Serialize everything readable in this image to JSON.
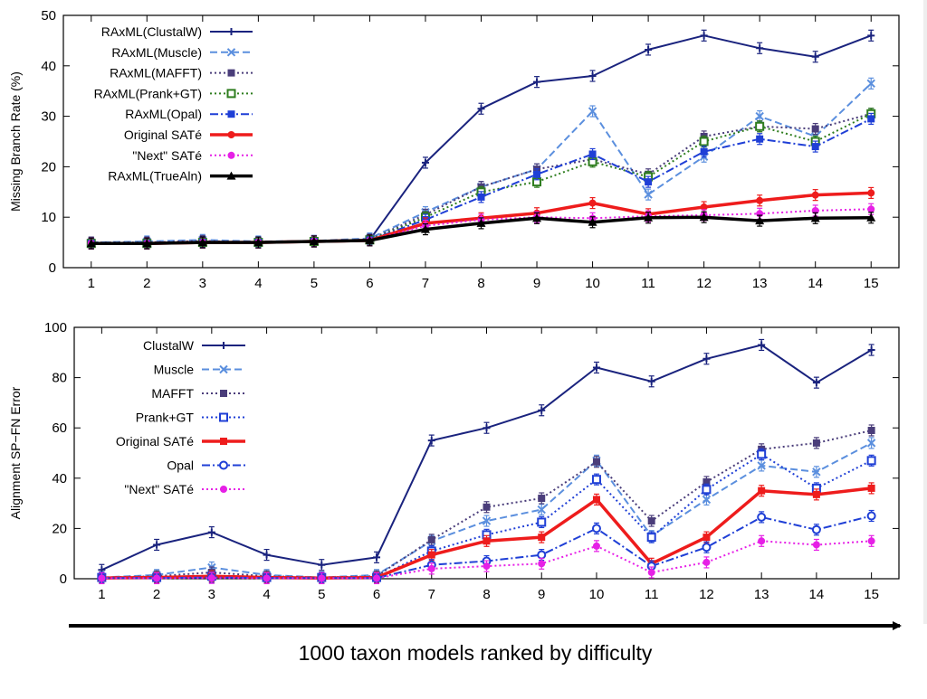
{
  "footer": {
    "caption": "1000 taxon models ranked by difficulty"
  },
  "chart_data": [
    {
      "type": "line",
      "ylabel": "Missing Branch Rate (%)",
      "xlabel": "",
      "ylim": [
        0,
        50
      ],
      "yticks": [
        0,
        10,
        20,
        30,
        40,
        50
      ],
      "x": [
        1,
        2,
        3,
        4,
        5,
        6,
        7,
        8,
        9,
        10,
        11,
        12,
        13,
        14,
        15
      ],
      "legend_position": "top-left",
      "grid": false,
      "series": [
        {
          "name": "RAxML(ClustalW)",
          "color": "#1a237e",
          "marker": "plus",
          "dash": "solid",
          "width": 2,
          "values": [
            4.8,
            4.8,
            5.2,
            5.0,
            5.3,
            5.5,
            20.8,
            31.5,
            36.8,
            38.0,
            43.2,
            46.0,
            43.5,
            41.8,
            46.0
          ]
        },
        {
          "name": "RAxML(Muscle)",
          "color": "#5b8fde",
          "marker": "x",
          "dash": "dashed",
          "width": 2,
          "values": [
            5.0,
            5.2,
            5.5,
            5.2,
            5.3,
            5.8,
            11.0,
            16.0,
            19.5,
            31.0,
            14.5,
            22.0,
            30.0,
            26.0,
            36.5
          ]
        },
        {
          "name": "RAxML(MAFFT)",
          "color": "#4a3d7a",
          "marker": "square-filled",
          "dash": "dotted",
          "width": 2,
          "values": [
            5.0,
            5.0,
            5.3,
            5.0,
            5.2,
            5.6,
            10.5,
            16.0,
            19.5,
            21.5,
            18.5,
            26.0,
            28.0,
            27.5,
            30.5
          ]
        },
        {
          "name": "RAxML(Prank+GT)",
          "color": "#2e7d1e",
          "marker": "square-open",
          "dash": "dotted",
          "width": 2,
          "values": [
            4.8,
            4.8,
            5.0,
            5.0,
            5.2,
            5.5,
            10.0,
            15.0,
            17.0,
            21.0,
            18.0,
            25.0,
            28.0,
            25.0,
            30.5
          ]
        },
        {
          "name": "RAxML(Opal)",
          "color": "#1f3fd6",
          "marker": "square-filled",
          "dash": "dashdot",
          "width": 2,
          "values": [
            4.8,
            4.8,
            5.0,
            5.0,
            5.2,
            5.5,
            9.5,
            14.0,
            18.5,
            22.5,
            17.0,
            23.0,
            25.5,
            24.0,
            29.5
          ]
        },
        {
          "name": "Original SATé",
          "color": "#ee1c1c",
          "marker": "circle-filled",
          "dash": "solid",
          "width": 3.5,
          "values": [
            4.8,
            4.8,
            5.0,
            5.0,
            5.2,
            5.4,
            8.8,
            9.8,
            10.8,
            12.8,
            10.6,
            12.0,
            13.3,
            14.4,
            14.8
          ]
        },
        {
          "name": "\"Next\" SATé",
          "color": "#e620e6",
          "marker": "circle-filled",
          "dash": "dotted",
          "width": 2,
          "values": [
            4.8,
            4.8,
            5.0,
            5.0,
            5.2,
            5.4,
            8.3,
            9.5,
            10.0,
            9.8,
            10.2,
            10.4,
            10.7,
            11.3,
            11.6
          ]
        },
        {
          "name": "RAxML(TrueAln)",
          "color": "#000000",
          "marker": "triangle",
          "dash": "solid",
          "width": 3.5,
          "values": [
            4.8,
            4.8,
            5.0,
            5.0,
            5.2,
            5.4,
            7.6,
            8.8,
            9.8,
            9.0,
            9.9,
            10.0,
            9.3,
            9.8,
            9.9
          ]
        }
      ]
    },
    {
      "type": "line",
      "ylabel": "Alignment SP−FN Error",
      "xlabel": "",
      "ylim": [
        0,
        100
      ],
      "yticks": [
        0,
        20,
        40,
        60,
        80,
        100
      ],
      "x": [
        1,
        2,
        3,
        4,
        5,
        6,
        7,
        8,
        9,
        10,
        11,
        12,
        13,
        14,
        15
      ],
      "legend_position": "top-left",
      "grid": false,
      "series": [
        {
          "name": "ClustalW",
          "color": "#1a237e",
          "marker": "plus",
          "dash": "solid",
          "width": 2,
          "values": [
            3.5,
            13.5,
            18.5,
            9.5,
            5.5,
            8.5,
            55.0,
            60.0,
            67.0,
            84.0,
            78.5,
            87.5,
            93.0,
            78.0,
            91.0
          ]
        },
        {
          "name": "Muscle",
          "color": "#5b8fde",
          "marker": "x",
          "dash": "dashed",
          "width": 2,
          "values": [
            0.5,
            1.5,
            4.5,
            1.5,
            0.5,
            1.5,
            15.0,
            23.0,
            27.5,
            47.0,
            17.0,
            31.5,
            45.0,
            42.5,
            54.0
          ]
        },
        {
          "name": "MAFFT",
          "color": "#4a3d7a",
          "marker": "square-filled",
          "dash": "dotted",
          "width": 2,
          "values": [
            0.5,
            1.0,
            2.5,
            1.0,
            0.5,
            1.0,
            15.5,
            28.5,
            32.0,
            46.5,
            23.0,
            38.5,
            51.5,
            54.0,
            59.0
          ]
        },
        {
          "name": "Prank+GT",
          "color": "#1f3fd6",
          "marker": "square-open",
          "dash": "dotted",
          "width": 2,
          "values": [
            0.5,
            0.5,
            1.0,
            0.5,
            0.5,
            0.5,
            11.0,
            17.5,
            22.5,
            39.5,
            16.5,
            35.5,
            49.5,
            36.0,
            47.0
          ]
        },
        {
          "name": "Original SATé",
          "color": "#ee1c1c",
          "marker": "square-filled",
          "dash": "solid",
          "width": 3.5,
          "values": [
            0.3,
            0.5,
            1.0,
            0.5,
            0.3,
            0.5,
            9.5,
            15.0,
            16.5,
            31.5,
            6.0,
            16.5,
            35.0,
            33.5,
            36.0
          ]
        },
        {
          "name": "Opal",
          "color": "#1f3fd6",
          "marker": "circle-open",
          "dash": "dashdot",
          "width": 2,
          "values": [
            0.3,
            0.3,
            0.5,
            0.3,
            0.3,
            0.3,
            5.5,
            7.0,
            9.5,
            20.0,
            5.0,
            12.5,
            24.5,
            19.5,
            25.0
          ]
        },
        {
          "name": "\"Next\" SATé",
          "color": "#e620e6",
          "marker": "circle-filled",
          "dash": "dotted",
          "width": 2,
          "values": [
            0.2,
            0.2,
            0.3,
            0.2,
            0.2,
            0.2,
            4.0,
            5.0,
            6.0,
            13.0,
            2.5,
            6.5,
            15.0,
            13.5,
            15.0
          ]
        }
      ]
    }
  ]
}
